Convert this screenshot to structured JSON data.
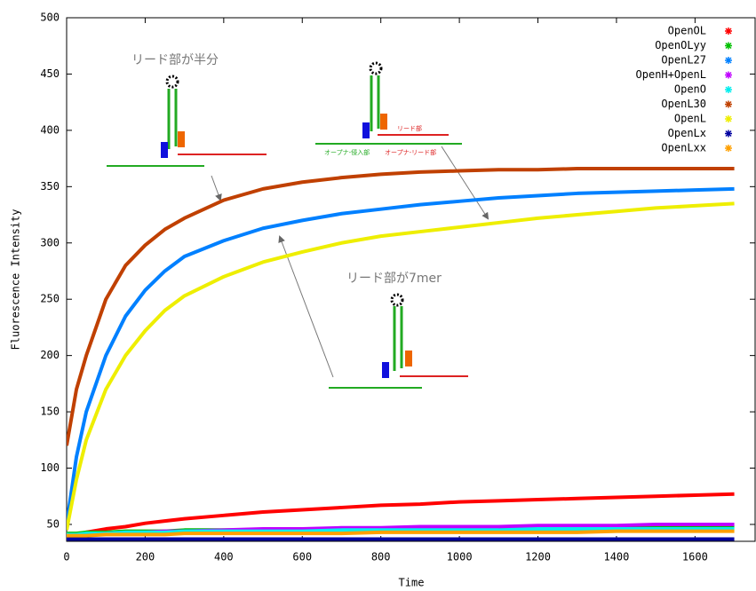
{
  "chart_data": {
    "type": "line",
    "xlabel": "Time",
    "ylabel": "Fluorescence Intensity",
    "x": [
      0,
      25,
      50,
      100,
      150,
      200,
      250,
      300,
      400,
      500,
      600,
      700,
      800,
      900,
      1000,
      1100,
      1200,
      1300,
      1400,
      1500,
      1600,
      1700
    ],
    "xlim": [
      0,
      1753
    ],
    "xticks": [
      0,
      200,
      400,
      600,
      800,
      1000,
      1200,
      1400,
      1600
    ],
    "ylim": [
      35,
      500
    ],
    "yticks": [
      50,
      100,
      150,
      200,
      250,
      300,
      350,
      400,
      450,
      500
    ],
    "legend": "upper right",
    "series": [
      {
        "name": "OpenOL",
        "color": "#ff0000",
        "values": [
          40,
          41,
          43,
          46,
          48,
          51,
          53,
          55,
          58,
          61,
          63,
          65,
          67,
          68,
          70,
          71,
          72,
          73,
          74,
          75,
          76,
          77
        ]
      },
      {
        "name": "OpenOLyy",
        "color": "#00c000",
        "values": [
          42,
          42,
          43,
          43,
          44,
          44,
          44,
          45,
          45,
          45,
          46,
          46,
          46,
          46,
          47,
          47,
          47,
          47,
          47,
          48,
          48,
          48
        ]
      },
      {
        "name": "OpenL27",
        "color": "#0080ff",
        "values": [
          50,
          110,
          150,
          200,
          235,
          258,
          275,
          288,
          302,
          313,
          320,
          326,
          330,
          334,
          337,
          340,
          342,
          344,
          345,
          346,
          347,
          348
        ]
      },
      {
        "name": "OpenH+OpenL",
        "color": "#c000ff",
        "values": [
          40,
          40,
          41,
          42,
          43,
          43,
          44,
          44,
          45,
          46,
          46,
          47,
          47,
          48,
          48,
          48,
          49,
          49,
          49,
          50,
          50,
          50
        ]
      },
      {
        "name": "OpenO",
        "color": "#00eeee",
        "values": [
          41,
          41,
          42,
          42,
          43,
          43,
          43,
          44,
          44,
          44,
          44,
          45,
          45,
          45,
          45,
          45,
          46,
          46,
          46,
          46,
          46,
          46
        ]
      },
      {
        "name": "OpenL30",
        "color": "#c04000",
        "values": [
          120,
          170,
          200,
          250,
          280,
          298,
          312,
          322,
          338,
          348,
          354,
          358,
          361,
          363,
          364,
          365,
          365,
          366,
          366,
          366,
          366,
          366
        ]
      },
      {
        "name": "OpenL",
        "color": "#eeee00",
        "values": [
          45,
          90,
          125,
          170,
          200,
          222,
          240,
          253,
          270,
          283,
          292,
          300,
          306,
          310,
          314,
          318,
          322,
          325,
          328,
          331,
          333,
          335
        ]
      },
      {
        "name": "OpenLx",
        "color": "#0000a0",
        "values": [
          37,
          37,
          37,
          37,
          37,
          37,
          37,
          37,
          37,
          37,
          37,
          37,
          37,
          37,
          37,
          37,
          37,
          37,
          37,
          37,
          37,
          37
        ]
      },
      {
        "name": "OpenLxx",
        "color": "#ffa000",
        "values": [
          40,
          40,
          40,
          41,
          41,
          41,
          41,
          42,
          42,
          42,
          42,
          42,
          43,
          43,
          43,
          43,
          43,
          43,
          44,
          44,
          44,
          44
        ]
      }
    ],
    "annotations": [
      "リード部が半分",
      "リード部が7mer",
      "リード部",
      "オープナ-侵入部",
      "オープナ-リード部"
    ]
  }
}
